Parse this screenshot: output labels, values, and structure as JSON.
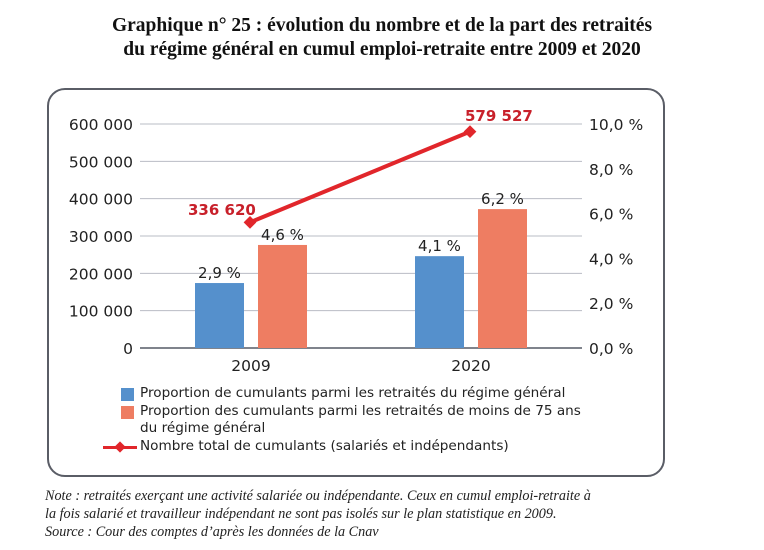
{
  "title_lines": [
    "Graphique n° 25 : évolution du nombre et de la part des retraités",
    "du régime général en cumul emploi-retraite entre 2009 et 2020"
  ],
  "chart_data": {
    "type": "bar",
    "title": "Graphique n° 25 : évolution du nombre et de la part des retraités du régime général en cumul emploi-retraite entre 2009 et 2020",
    "categories": [
      "2009",
      "2020"
    ],
    "left_axis": {
      "ylim": [
        0,
        600000
      ],
      "ticks": [
        "0",
        "100 000",
        "200 000",
        "300 000",
        "400 000",
        "500 000",
        "600 000"
      ],
      "tick_values": [
        0,
        100000,
        200000,
        300000,
        400000,
        500000,
        600000
      ]
    },
    "right_axis": {
      "ylim": [
        0,
        10
      ],
      "ticks": [
        "0,0 %",
        "2,0 %",
        "4,0 %",
        "6,0 %",
        "8,0 %",
        "10,0 %"
      ],
      "tick_values": [
        0,
        2,
        4,
        6,
        8,
        10
      ]
    },
    "grid": true,
    "series": [
      {
        "name": "Proportion de cumulants parmi les retraités du régime général",
        "type": "bar",
        "axis": "right",
        "color": "#5590cc",
        "values": [
          2.9,
          4.1
        ],
        "labels": [
          "2,9 %",
          "4,1 %"
        ]
      },
      {
        "name": "Proportion des cumulants parmi les retraités de moins de 75 ans du régime général",
        "type": "bar",
        "axis": "right",
        "color": "#ee7d62",
        "values": [
          4.6,
          6.2
        ],
        "labels": [
          "4,6 %",
          "6,2 %"
        ]
      },
      {
        "name": "Nombre total de cumulants (salariés et indépendants)",
        "type": "line",
        "axis": "left",
        "color": "#e1262b",
        "values": [
          336620,
          579527
        ],
        "labels": [
          "336 620",
          "579 527"
        ]
      }
    ],
    "legend": [
      {
        "kind": "swatch",
        "color": "#5590cc",
        "lines": [
          "Proportion de cumulants parmi les retraités du régime général"
        ]
      },
      {
        "kind": "swatch",
        "color": "#ee7d62",
        "lines": [
          "Proportion des cumulants parmi les retraités de moins de 75 ans",
          "du régime général"
        ]
      },
      {
        "kind": "line",
        "color": "#e1262b",
        "lines": [
          "Nombre total de cumulants (salariés et indépendants)"
        ]
      }
    ],
    "legend_position": "bottom"
  },
  "note_lines": [
    "Note : retraités exerçant une activité salariée ou indépendante. Ceux en cumul emploi-retraite à",
    "la fois salarié et travailleur indépendant ne sont pas isolés sur le plan statistique en 2009.",
    "Source : Cour des comptes d’après les données de la Cnav"
  ]
}
